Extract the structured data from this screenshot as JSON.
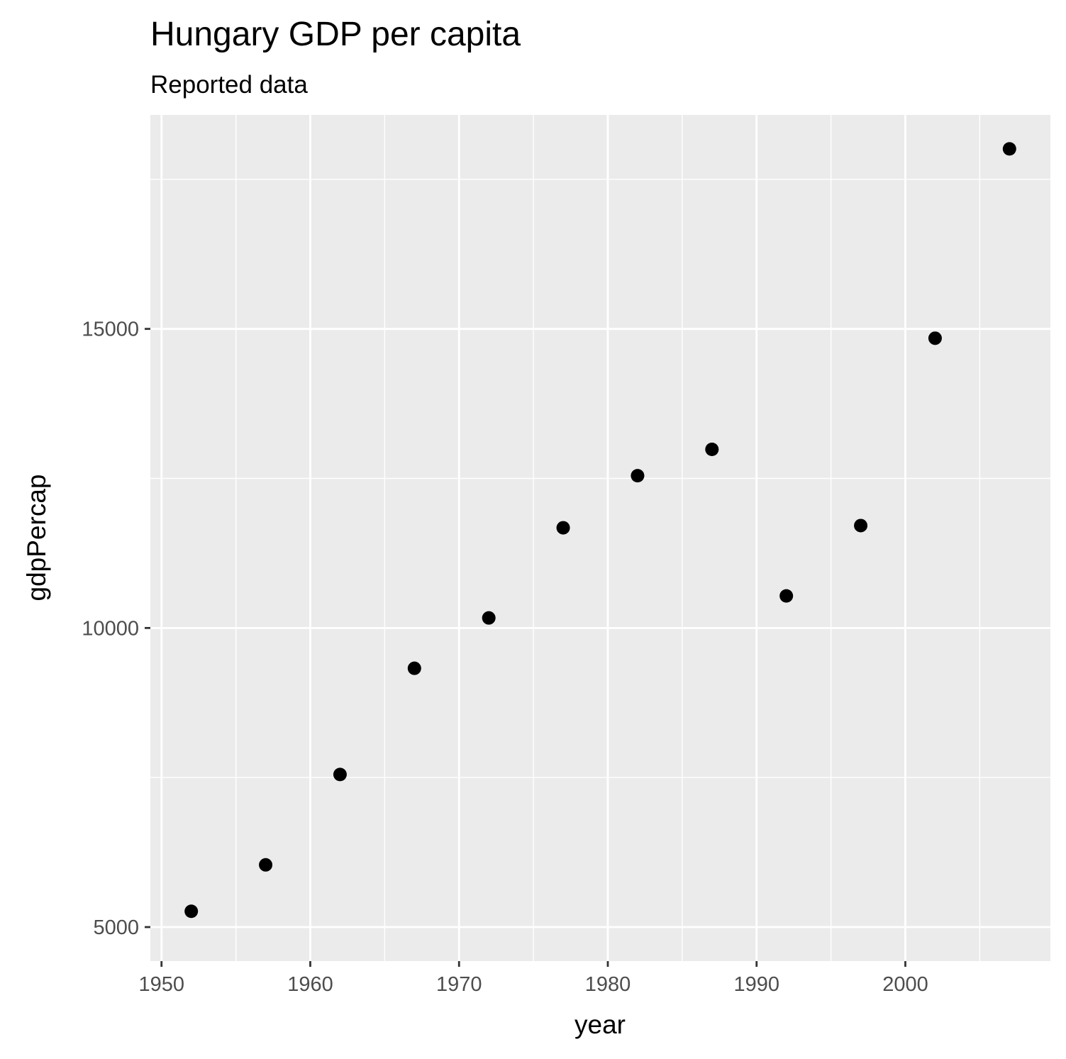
{
  "chart_data": {
    "type": "scatter",
    "title": "Hungary GDP per capita",
    "subtitle": "Reported data",
    "xlabel": "year",
    "ylabel": "gdpPercap",
    "x_ticks": [
      1950,
      1960,
      1970,
      1980,
      1990,
      2000
    ],
    "y_ticks": [
      5000,
      10000,
      15000
    ],
    "x_tick_labels": [
      "1950",
      "1960",
      "1970",
      "1980",
      "1990",
      "2000"
    ],
    "y_tick_labels": [
      "5000",
      "10000",
      "15000"
    ],
    "xlim": [
      1949.25,
      2009.75
    ],
    "ylim": [
      4431,
      18577
    ],
    "grid": true,
    "colors": {
      "panel": "#ebebeb",
      "grid": "#ffffff",
      "point": "#000000",
      "tick": "#333333"
    },
    "series": [
      {
        "x": [
          1952,
          1957,
          1962,
          1967,
          1972,
          1977,
          1982,
          1987,
          1992,
          1997,
          2002,
          2007
        ],
        "y": [
          5264,
          6040,
          7551,
          9326,
          10168,
          11675,
          12546,
          12986,
          10536,
          11712,
          14844,
          18009
        ]
      }
    ]
  }
}
